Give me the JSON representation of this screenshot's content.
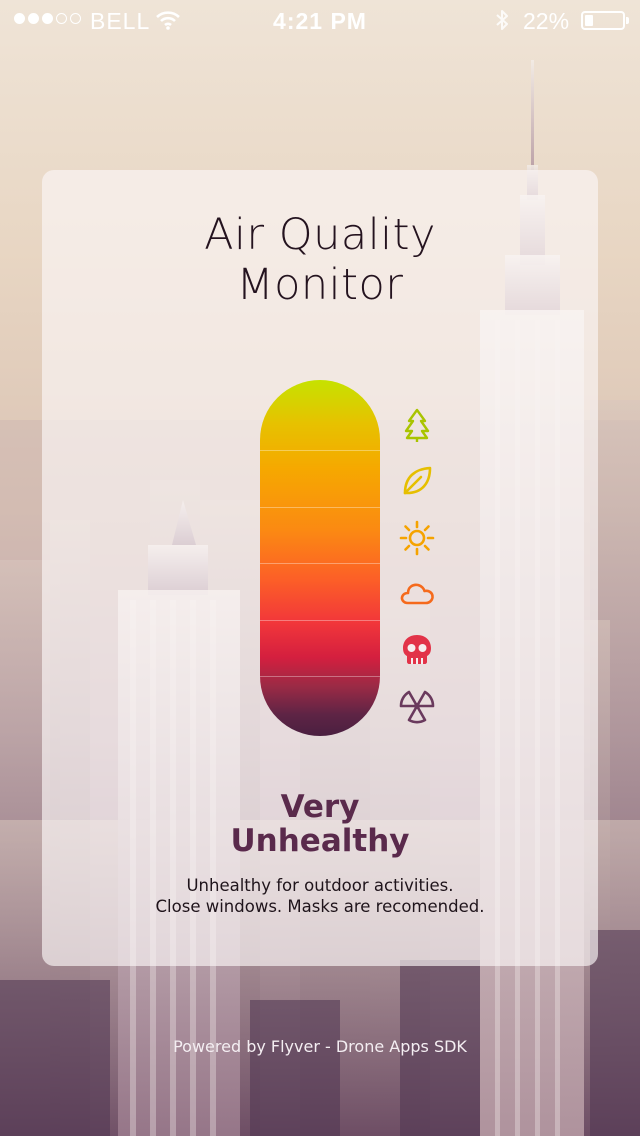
{
  "status_bar": {
    "carrier": "BELL",
    "time": "4:21 PM",
    "battery_percent_label": "22%",
    "battery_level": 0.22,
    "signal_bars_filled": 3,
    "signal_bars_total": 5
  },
  "card": {
    "title_line1": "Air Quality",
    "title_line2": "Monitor",
    "level_icons": [
      "tree-icon",
      "leaf-icon",
      "sun-icon",
      "cloud-icon",
      "skull-icon",
      "radiation-icon"
    ],
    "level_colors": [
      "#a9c400",
      "#e6bf00",
      "#f5a300",
      "#f56a1c",
      "#e23348",
      "#6a3a5d"
    ],
    "status_line1": "Very",
    "status_line2": "Unhealthy",
    "advice_line1": "Unhealthy for outdoor activities.",
    "advice_line2": "Close windows. Masks are recomended."
  },
  "footer": {
    "text": "Powered by Flyver - Drone Apps SDK"
  }
}
